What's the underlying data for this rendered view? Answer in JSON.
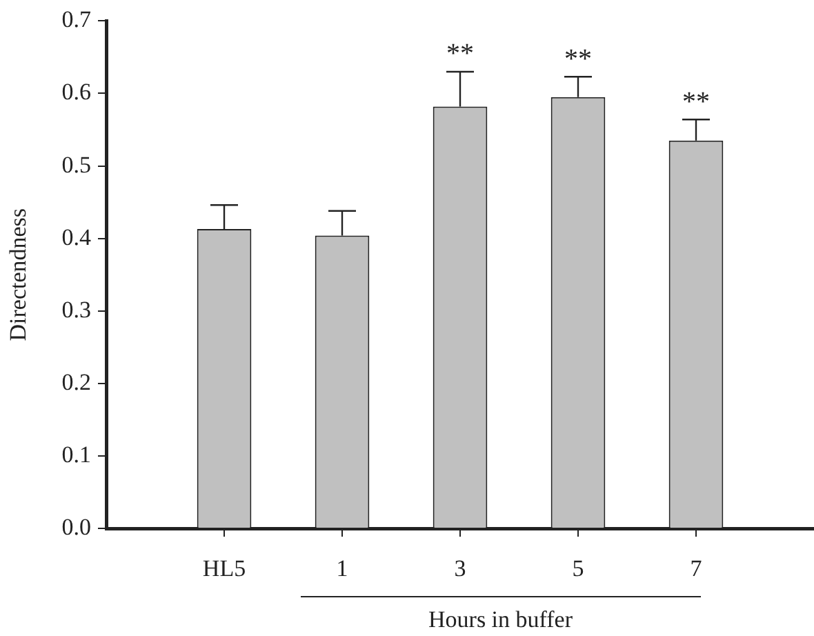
{
  "chart_data": {
    "type": "bar",
    "ylabel": "Directendness",
    "xlabel": "Hours in buffer",
    "categories": [
      "HL5",
      "1",
      "3",
      "5",
      "7"
    ],
    "values": [
      0.413,
      0.404,
      0.582,
      0.595,
      0.535
    ],
    "errors": [
      [
        0.413,
        0.446
      ],
      [
        0.404,
        0.438
      ],
      [
        0.582,
        0.63
      ],
      [
        0.595,
        0.623
      ],
      [
        0.535,
        0.564
      ]
    ],
    "color": "#c0c0c0",
    "ylim": [
      0,
      0.7
    ],
    "yticks": [
      {
        "value": 0,
        "label": "0.0"
      },
      0.1,
      0.2,
      0.3,
      0.4,
      0.5,
      0.6,
      0.7
    ],
    "annotations": [
      {
        "text": "**",
        "x": "3",
        "y": 0.63
      },
      {
        "text": "**",
        "x": "5",
        "y": 0.623
      },
      {
        "text": "**",
        "x": "7",
        "y": 0.564
      }
    ],
    "grid": false,
    "legend": false
  }
}
